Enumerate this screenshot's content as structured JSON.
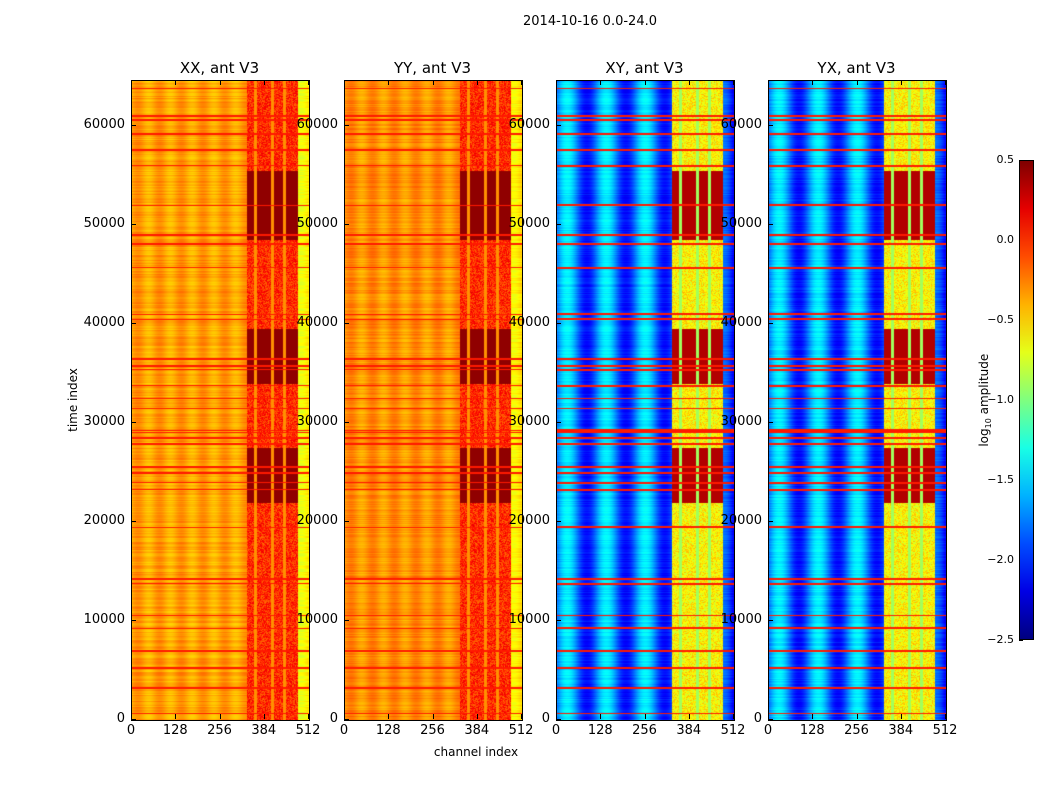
{
  "suptitle": "2014-10-16 0.0-24.0",
  "chart_data": {
    "type": "heatmap",
    "colormap": "jet",
    "xlabel": "channel index",
    "ylabel": "time index",
    "xlim": [
      0,
      512
    ],
    "ylim": [
      0,
      64500
    ],
    "xticks": [
      "0",
      "128",
      "256",
      "384",
      "512"
    ],
    "xtick_values": [
      0,
      128,
      256,
      384,
      512
    ],
    "yticks": [
      "0",
      "10000",
      "20000",
      "30000",
      "40000",
      "50000",
      "60000"
    ],
    "ytick_values": [
      0,
      10000,
      20000,
      30000,
      40000,
      50000,
      60000
    ],
    "panels": [
      {
        "title": "XX, ant V3",
        "base_level": -0.35,
        "band_level": 0.0,
        "dense_level": 0.45
      },
      {
        "title": "YY, ant V3",
        "base_level": -0.3,
        "band_level": 0.0,
        "dense_level": 0.45
      },
      {
        "title": "XY, ant V3",
        "base_level": -1.75,
        "band_level": -0.6,
        "dense_level": 0.35
      },
      {
        "title": "YX, ant V3",
        "base_level": -1.75,
        "band_level": -0.6,
        "dense_level": 0.35
      }
    ],
    "band_channels": [
      330,
      480
    ],
    "dense_time_ranges": [
      [
        22000,
        27500
      ],
      [
        34000,
        39500
      ],
      [
        48500,
        55500
      ]
    ],
    "rfi_times": [
      700,
      3300,
      5300,
      7000,
      9300,
      10600,
      13800,
      14300,
      19500,
      23300,
      24000,
      25000,
      25600,
      27900,
      28500,
      29100,
      29300,
      31500,
      32500,
      33800,
      35400,
      35800,
      36500,
      40500,
      41000,
      45700,
      48100,
      49000,
      52000,
      56000,
      57600,
      59200,
      60600,
      61000,
      63800
    ],
    "rfi_level": 0.05,
    "colorbar": {
      "label": "log",
      "label_sub": "10",
      "label_rest": " amplitude",
      "range": [
        -2.5,
        0.5
      ],
      "ticks": [
        "0.5",
        "0.0",
        "−0.5",
        "−1.0",
        "−1.5",
        "−2.0",
        "−2.5"
      ],
      "tick_values": [
        0.5,
        0.0,
        -0.5,
        -1.0,
        -1.5,
        -2.0,
        -2.5
      ]
    }
  }
}
